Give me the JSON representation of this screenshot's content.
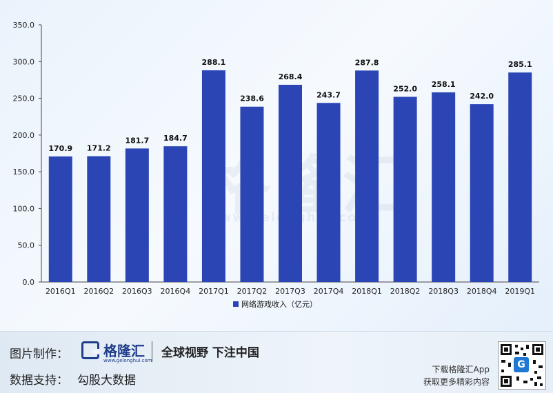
{
  "chart_data": {
    "type": "bar",
    "categories": [
      "2016Q1",
      "2016Q2",
      "2016Q3",
      "2016Q4",
      "2017Q1",
      "2017Q2",
      "2017Q3",
      "2017Q4",
      "2018Q1",
      "2018Q2",
      "2018Q3",
      "2018Q4",
      "2019Q1"
    ],
    "series": [
      {
        "name": "网络游戏收入（亿元）",
        "values": [
          170.9,
          171.2,
          181.7,
          184.7,
          288.1,
          238.6,
          268.4,
          243.7,
          287.8,
          252.0,
          258.1,
          242.0,
          285.1
        ]
      }
    ],
    "value_labels": [
      "170.9",
      "171.2",
      "181.7",
      "184.7",
      "288.1",
      "238.6",
      "268.4",
      "243.7",
      "287.8",
      "252.0",
      "258.1",
      "242.0",
      "285.1"
    ],
    "yticks": [
      "0.0",
      "50.0",
      "100.0",
      "150.0",
      "200.0",
      "250.0",
      "300.0",
      "350.0"
    ],
    "ylim": [
      0,
      350
    ],
    "grid": false,
    "legend_position": "bottom",
    "bar_color": "#2b45b5"
  },
  "watermark": {
    "text": "格隆汇",
    "url": "www.gelonghui.com"
  },
  "footer": {
    "credit_label": "图片制作：",
    "source_label": "数据支持：",
    "source_value": "勾股大数据",
    "logo_name": "格隆汇",
    "logo_url": "www.gelonghui.com",
    "slogan": "全球视野 下注中国",
    "app_line1": "下载格隆汇App",
    "app_line2": "获取更多精彩内容",
    "qr_badge": "G"
  }
}
